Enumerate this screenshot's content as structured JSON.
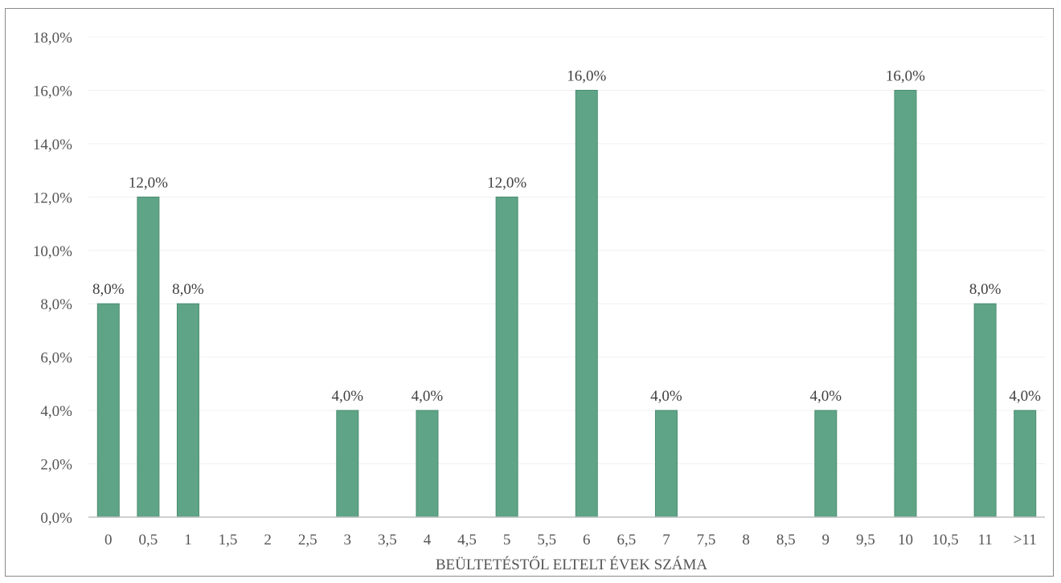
{
  "chart_data": {
    "type": "bar",
    "categories": [
      "0",
      "0,5",
      "1",
      "1,5",
      "2",
      "2,5",
      "3",
      "3,5",
      "4",
      "4,5",
      "5",
      "5,5",
      "6",
      "6,5",
      "7",
      "7,5",
      "8",
      "8,5",
      "9",
      "9,5",
      "10",
      "10,5",
      "11",
      ">11"
    ],
    "values": [
      8.0,
      12.0,
      8.0,
      0,
      0,
      0,
      4.0,
      0,
      4.0,
      0,
      12.0,
      0,
      16.0,
      0,
      4.0,
      0,
      0,
      0,
      4.0,
      0,
      16.0,
      0,
      8.0,
      4.0
    ],
    "data_labels": [
      "8,0%",
      "12,0%",
      "8,0%",
      "",
      "",
      "",
      "4,0%",
      "",
      "4,0%",
      "",
      "12,0%",
      "",
      "16,0%",
      "",
      "4,0%",
      "",
      "",
      "",
      "4,0%",
      "",
      "16,0%",
      "",
      "8,0%",
      "4,0%"
    ],
    "yticks": [
      "0,0%",
      "2,0%",
      "4,0%",
      "6,0%",
      "8,0%",
      "10,0%",
      "12,0%",
      "14,0%",
      "16,0%",
      "18,0%"
    ],
    "ylim": [
      0,
      18
    ],
    "xlabel": "BEÜLTETÉSTŐL ELTELT ÉVEK SZÁMA",
    "ylabel": "",
    "title": "",
    "grid": true,
    "bar_color": "#5fa487",
    "bar_color_edge": "#4a8d70"
  }
}
